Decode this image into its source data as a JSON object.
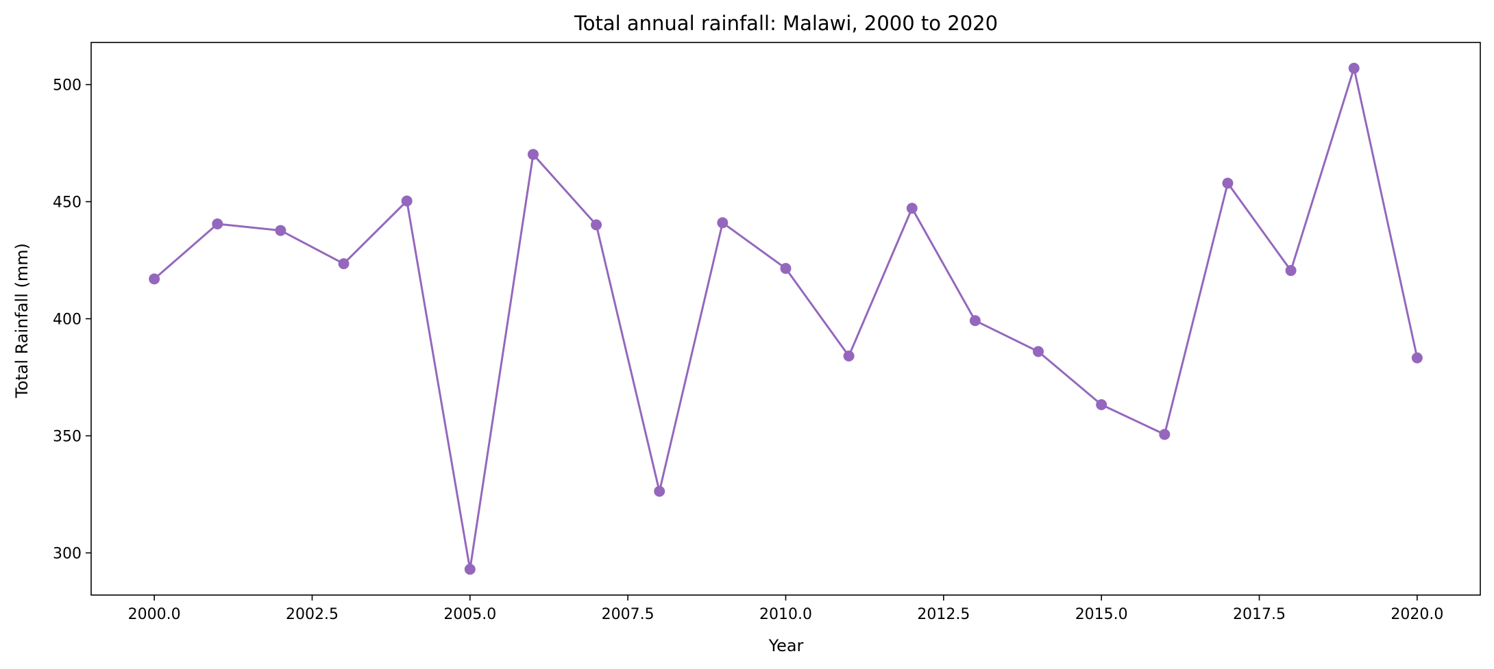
{
  "chart_data": {
    "type": "line",
    "title": "Total annual rainfall: Malawi, 2000 to 2020",
    "xlabel": "Year",
    "ylabel": "Total Rainfall (mm)",
    "xlim": [
      1999.0,
      2021.0
    ],
    "ylim": [
      282,
      518
    ],
    "xticks": [
      2000.0,
      2002.5,
      2005.0,
      2007.5,
      2010.0,
      2012.5,
      2015.0,
      2017.5,
      2020.0
    ],
    "xtick_labels": [
      "2000.0",
      "2002.5",
      "2005.0",
      "2007.5",
      "2010.0",
      "2012.5",
      "2015.0",
      "2017.5",
      "2020.0"
    ],
    "yticks": [
      300,
      350,
      400,
      450,
      500
    ],
    "ytick_labels": [
      "300",
      "350",
      "400",
      "450",
      "500"
    ],
    "grid": false,
    "color": "#9467bd",
    "marker": "circle",
    "series": [
      {
        "x": [
          2000,
          2001,
          2002,
          2003,
          2004,
          2005,
          2006,
          2007,
          2008,
          2009,
          2010,
          2011,
          2012,
          2013,
          2014,
          2015,
          2016,
          2017,
          2018,
          2019,
          2020
        ],
        "values": [
          417,
          440.5,
          437.7,
          423.5,
          450.3,
          293,
          470.2,
          440.1,
          326.3,
          441,
          421.5,
          384.1,
          447.2,
          399.2,
          386,
          363.3,
          350.6,
          457.9,
          420.6,
          507,
          383.3
        ]
      }
    ]
  }
}
